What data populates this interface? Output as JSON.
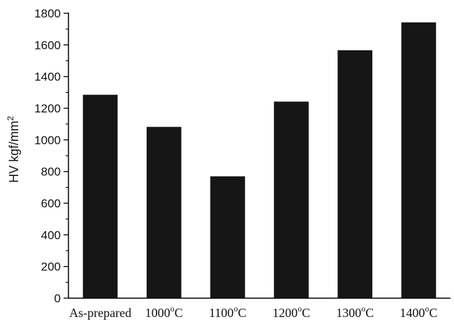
{
  "chart_data": {
    "type": "bar",
    "categories": [
      {
        "main": "As-prepared",
        "sup": "",
        "tail": ""
      },
      {
        "main": "1000",
        "sup": "o",
        "tail": "C"
      },
      {
        "main": "1100",
        "sup": "o",
        "tail": "C"
      },
      {
        "main": "1200",
        "sup": "o",
        "tail": "C"
      },
      {
        "main": "1300",
        "sup": "o",
        "tail": "C"
      },
      {
        "main": "1400",
        "sup": "o",
        "tail": "C"
      }
    ],
    "values": [
      1285,
      1082,
      770,
      1242,
      1566,
      1742
    ],
    "ylim": [
      0,
      1800
    ],
    "yticks": [
      0,
      200,
      400,
      600,
      800,
      1000,
      1200,
      1400,
      1600,
      1800
    ],
    "ylabel": {
      "main": "HV kgf/mm",
      "sup": "2"
    },
    "xlabel": "",
    "title": "",
    "grid": false,
    "bar_color": "#161616",
    "axis_color": "#000000"
  }
}
